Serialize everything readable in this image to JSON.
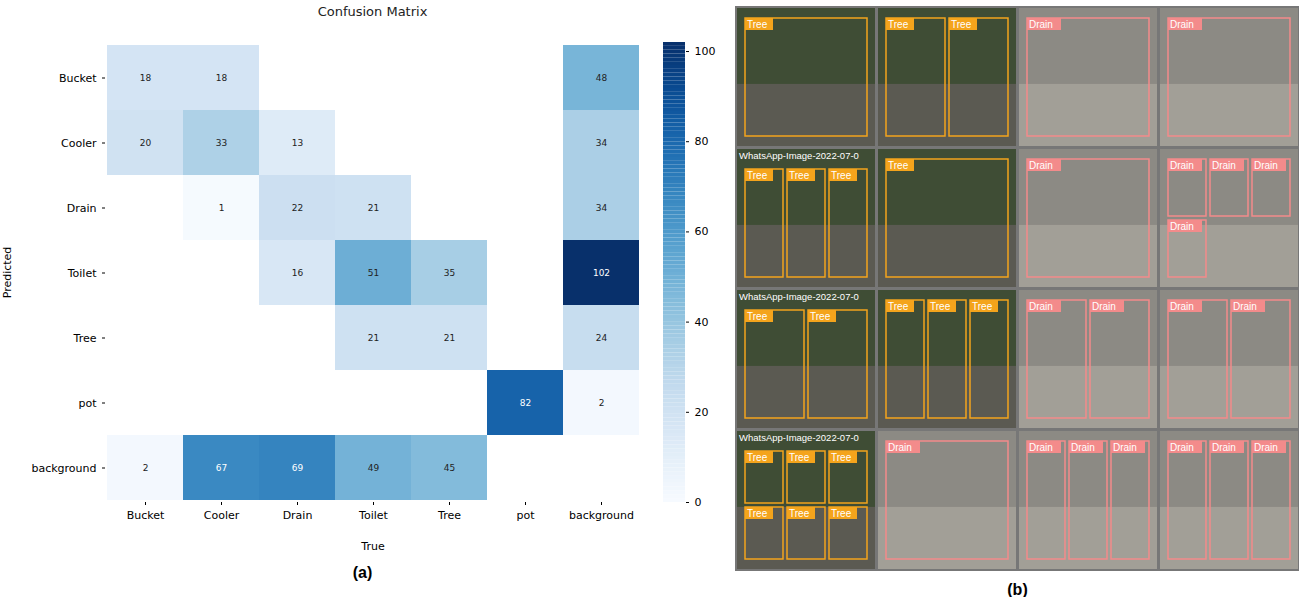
{
  "chart_data": {
    "type": "heatmap",
    "title": "Confusion Matrix",
    "x_label": "True",
    "y_label": "Predicted",
    "x_categories": [
      "Bucket",
      "Cooler",
      "Drain",
      "Toilet",
      "Tree",
      "pot",
      "background"
    ],
    "y_categories": [
      "Bucket",
      "Cooler",
      "Drain",
      "Toilet",
      "Tree",
      "pot",
      "background"
    ],
    "cells": [
      [
        18,
        18,
        null,
        null,
        null,
        null,
        48
      ],
      [
        20,
        33,
        13,
        null,
        null,
        null,
        34
      ],
      [
        null,
        1,
        22,
        21,
        null,
        null,
        34
      ],
      [
        null,
        null,
        16,
        51,
        35,
        null,
        102
      ],
      [
        null,
        null,
        null,
        21,
        21,
        null,
        24
      ],
      [
        null,
        null,
        null,
        null,
        null,
        82,
        2
      ],
      [
        2,
        67,
        69,
        49,
        45,
        null,
        null
      ]
    ],
    "colorbar": {
      "range": [
        0,
        102
      ],
      "ticks": [
        0,
        20,
        40,
        60,
        80,
        100
      ],
      "color": "Blues"
    },
    "data_labels": true
  },
  "figure": {
    "panel_labels": [
      "(a)",
      "(b)"
    ],
    "detections": {
      "classes": [
        {
          "name": "Tree",
          "color": "#f4a41c"
        },
        {
          "name": "Drain",
          "color": "#f38b8b"
        }
      ],
      "tiles": [
        {
          "labels": [
            "Tree"
          ]
        },
        {
          "labels": [
            "Tree",
            "Tree"
          ]
        },
        {
          "labels": [
            "Drain"
          ]
        },
        {
          "labels": [
            "Drain"
          ]
        },
        {
          "caption": "WhatsApp-Image-2022-07-0",
          "labels": [
            "Tree",
            "Tree",
            "Tree"
          ]
        },
        {
          "labels": [
            "Tree"
          ]
        },
        {
          "labels": [
            "Drain"
          ]
        },
        {
          "labels": [
            "Drain",
            "Drain",
            "Drain",
            "Drain"
          ]
        },
        {
          "caption": "WhatsApp-Image-2022-07-0",
          "labels": [
            "Tree",
            "Tree"
          ]
        },
        {
          "labels": [
            "Tree",
            "Tree",
            "Tree"
          ]
        },
        {
          "labels": [
            "Drain",
            "Drain"
          ]
        },
        {
          "labels": [
            "Drain",
            "Drain"
          ]
        },
        {
          "caption": "WhatsApp-Image-2022-07-0",
          "labels": [
            "Tree",
            "Tree",
            "Tree",
            "Tree",
            "Tree",
            "Tree"
          ]
        },
        {
          "labels": [
            "Drain"
          ]
        },
        {
          "labels": [
            "Drain",
            "Drain",
            "Drain"
          ]
        },
        {
          "labels": [
            "Drain",
            "Drain",
            "Drain"
          ]
        }
      ]
    }
  }
}
